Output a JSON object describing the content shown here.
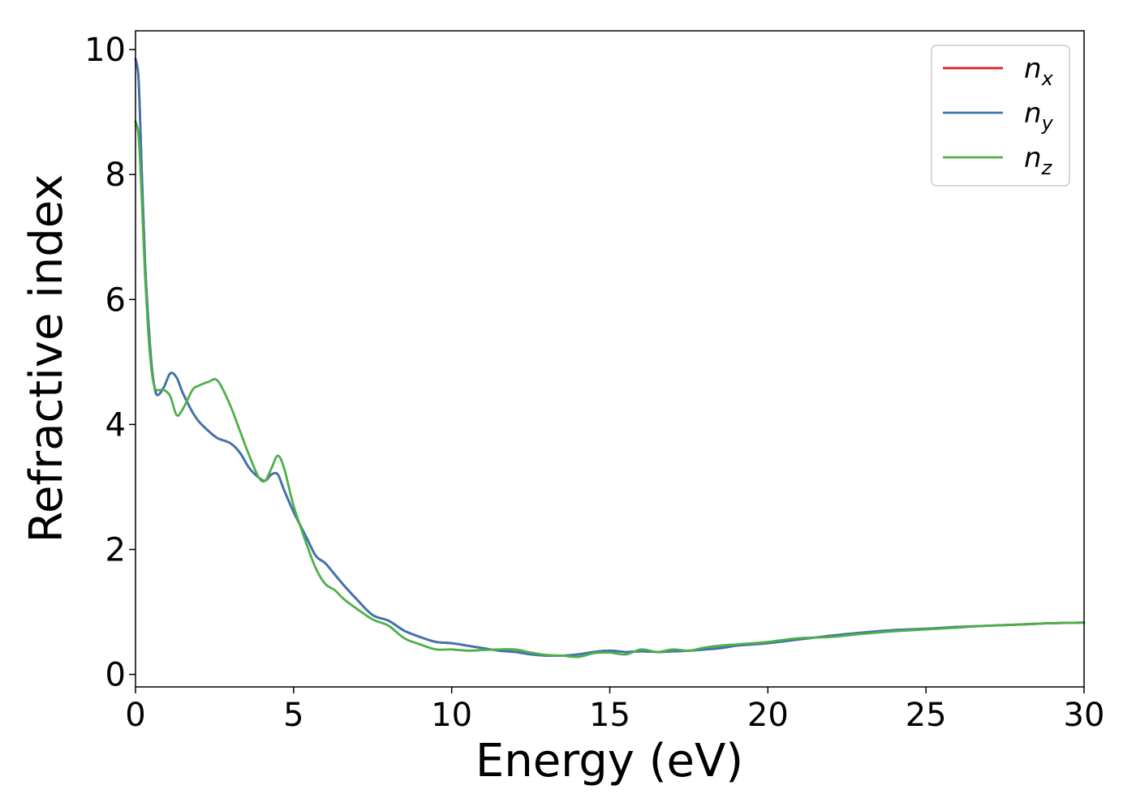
{
  "chart_data": {
    "type": "line",
    "xlabel": "Energy (eV)",
    "ylabel": "Refractive index",
    "xlim": [
      0,
      30
    ],
    "ylim": [
      -0.2,
      10.3
    ],
    "xticks": [
      "0",
      "5",
      "10",
      "15",
      "20",
      "25",
      "30"
    ],
    "yticks": [
      "0",
      "2",
      "4",
      "6",
      "8",
      "10"
    ],
    "grid": false,
    "legend_position": "top-right",
    "series": [
      {
        "name": "n",
        "sub": "x",
        "color": "#e41a1c",
        "x": [
          0,
          0.1,
          0.2,
          0.3,
          0.4,
          0.5,
          0.6,
          0.7,
          0.9,
          1.1,
          1.3,
          1.5,
          1.8,
          2.0,
          2.3,
          2.6,
          3.0,
          3.3,
          3.6,
          3.9,
          4.1,
          4.3,
          4.5,
          4.7,
          5.0,
          5.4,
          5.7,
          6.0,
          6.3,
          6.6,
          7.0,
          7.5,
          8.0,
          8.5,
          9.0,
          9.5,
          10.0,
          10.5,
          11.0,
          11.5,
          12.0,
          12.5,
          13.0,
          13.5,
          14.0,
          14.5,
          15.0,
          15.5,
          16.0,
          16.5,
          17.0,
          17.5,
          18.0,
          18.5,
          19.0,
          19.5,
          20.0,
          21.0,
          22.0,
          23.0,
          24.0,
          25.0,
          26.0,
          27.0,
          28.0,
          29.0,
          30.0
        ],
        "y": [
          9.85,
          9.5,
          8.0,
          6.6,
          5.7,
          5.0,
          4.6,
          4.47,
          4.6,
          4.82,
          4.75,
          4.5,
          4.2,
          4.05,
          3.9,
          3.78,
          3.7,
          3.55,
          3.3,
          3.15,
          3.1,
          3.2,
          3.2,
          2.95,
          2.6,
          2.2,
          1.9,
          1.78,
          1.6,
          1.42,
          1.2,
          0.95,
          0.86,
          0.7,
          0.6,
          0.52,
          0.5,
          0.46,
          0.42,
          0.38,
          0.36,
          0.32,
          0.3,
          0.3,
          0.32,
          0.36,
          0.38,
          0.36,
          0.37,
          0.36,
          0.37,
          0.38,
          0.4,
          0.42,
          0.46,
          0.48,
          0.5,
          0.56,
          0.62,
          0.67,
          0.71,
          0.73,
          0.76,
          0.78,
          0.8,
          0.82,
          0.83
        ]
      },
      {
        "name": "n",
        "sub": "y",
        "color": "#3a75b0",
        "x": [
          0,
          0.1,
          0.2,
          0.3,
          0.4,
          0.5,
          0.6,
          0.7,
          0.9,
          1.1,
          1.3,
          1.5,
          1.8,
          2.0,
          2.3,
          2.6,
          3.0,
          3.3,
          3.6,
          3.9,
          4.1,
          4.3,
          4.5,
          4.7,
          5.0,
          5.4,
          5.7,
          6.0,
          6.3,
          6.6,
          7.0,
          7.5,
          8.0,
          8.5,
          9.0,
          9.5,
          10.0,
          10.5,
          11.0,
          11.5,
          12.0,
          12.5,
          13.0,
          13.5,
          14.0,
          14.5,
          15.0,
          15.5,
          16.0,
          16.5,
          17.0,
          17.5,
          18.0,
          18.5,
          19.0,
          19.5,
          20.0,
          21.0,
          22.0,
          23.0,
          24.0,
          25.0,
          26.0,
          27.0,
          28.0,
          29.0,
          30.0
        ],
        "y": [
          9.85,
          9.5,
          8.0,
          6.6,
          5.7,
          5.0,
          4.6,
          4.47,
          4.6,
          4.82,
          4.75,
          4.5,
          4.2,
          4.05,
          3.9,
          3.78,
          3.7,
          3.55,
          3.3,
          3.15,
          3.1,
          3.2,
          3.2,
          2.95,
          2.6,
          2.2,
          1.9,
          1.78,
          1.6,
          1.42,
          1.2,
          0.95,
          0.86,
          0.7,
          0.6,
          0.52,
          0.5,
          0.46,
          0.42,
          0.38,
          0.36,
          0.32,
          0.3,
          0.3,
          0.32,
          0.36,
          0.38,
          0.36,
          0.37,
          0.36,
          0.37,
          0.38,
          0.4,
          0.42,
          0.46,
          0.48,
          0.5,
          0.56,
          0.62,
          0.67,
          0.71,
          0.73,
          0.76,
          0.78,
          0.8,
          0.82,
          0.83
        ]
      },
      {
        "name": "n",
        "sub": "z",
        "color": "#4daf4a",
        "x": [
          0,
          0.1,
          0.2,
          0.3,
          0.4,
          0.5,
          0.6,
          0.7,
          0.9,
          1.1,
          1.3,
          1.5,
          1.8,
          2.0,
          2.3,
          2.6,
          3.0,
          3.3,
          3.6,
          3.9,
          4.1,
          4.3,
          4.5,
          4.7,
          5.0,
          5.4,
          5.7,
          6.0,
          6.3,
          6.6,
          7.0,
          7.5,
          8.0,
          8.5,
          9.0,
          9.5,
          10.0,
          10.5,
          11.0,
          11.5,
          12.0,
          12.5,
          13.0,
          13.5,
          14.0,
          14.5,
          15.0,
          15.5,
          16.0,
          16.5,
          17.0,
          17.5,
          18.0,
          18.5,
          19.0,
          19.5,
          20.0,
          21.0,
          22.0,
          23.0,
          24.0,
          25.0,
          26.0,
          27.0,
          28.0,
          29.0,
          30.0
        ],
        "y": [
          8.85,
          8.6,
          7.6,
          6.4,
          5.5,
          4.9,
          4.6,
          4.55,
          4.55,
          4.45,
          4.15,
          4.25,
          4.55,
          4.62,
          4.68,
          4.7,
          4.3,
          3.9,
          3.5,
          3.15,
          3.1,
          3.3,
          3.5,
          3.3,
          2.7,
          2.1,
          1.7,
          1.45,
          1.35,
          1.2,
          1.05,
          0.88,
          0.78,
          0.58,
          0.48,
          0.4,
          0.4,
          0.38,
          0.39,
          0.4,
          0.4,
          0.35,
          0.31,
          0.3,
          0.28,
          0.34,
          0.35,
          0.32,
          0.4,
          0.36,
          0.4,
          0.38,
          0.43,
          0.46,
          0.48,
          0.5,
          0.52,
          0.58,
          0.6,
          0.65,
          0.69,
          0.72,
          0.75,
          0.78,
          0.8,
          0.82,
          0.83
        ]
      }
    ]
  }
}
